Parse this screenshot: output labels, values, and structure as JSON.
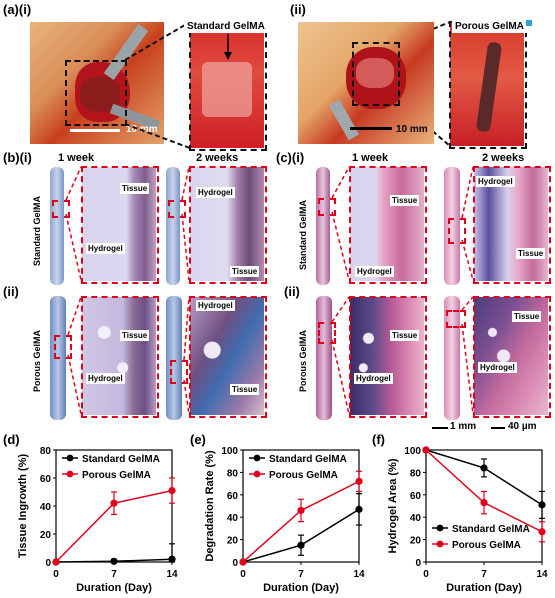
{
  "panel_a": {
    "label": "(a)(i)",
    "label_ii": "(ii)",
    "left_callout": "Standard GelMA",
    "right_callout": "Porous GelMA",
    "scale_left": "10 mm",
    "scale_right": "10 mm"
  },
  "panel_b": {
    "label": "(b)(i)",
    "label_ii": "(ii)",
    "week1": "1 week",
    "week2": "2 weeks",
    "row_i": "Standard GelMA",
    "row_ii": "Porous GelMA",
    "tissue": "Tissue",
    "hydrogel": "Hydrogel"
  },
  "panel_c": {
    "label": "(c)(i)",
    "label_ii": "(ii)",
    "week1": "1 week",
    "week2": "2 weeks",
    "row_i": "Standard GelMA",
    "row_ii": "Porous GelMA",
    "tissue": "Tissue",
    "hydrogel": "Hydrogel",
    "scale_1": "1 mm",
    "scale_2": "40 µm"
  },
  "colors": {
    "standard": "#000000",
    "porous": "#e0001b",
    "surgery_red": "#c4121d",
    "trichrome_blue": "#6f8fc4",
    "he_pink": "#e9a7c7",
    "hydrogel_lilac": "#d8d4ee"
  },
  "chart_data": [
    {
      "panel": "(d)",
      "type": "line",
      "ylabel": "Tissue Ingrowth (%)",
      "xlabel": "Duration (Day)",
      "x": [
        0,
        7,
        14
      ],
      "xticks": [
        "0",
        "7",
        "14"
      ],
      "ylim": [
        0,
        80
      ],
      "yticks": [
        "0",
        "20",
        "40",
        "60",
        "80"
      ],
      "legend_position": "top-left",
      "series": [
        {
          "name": "Standard GelMA",
          "values": [
            0,
            0.5,
            2
          ],
          "errors": [
            0,
            1.5,
            11
          ]
        },
        {
          "name": "Porous GelMA",
          "values": [
            0,
            42,
            51
          ],
          "errors": [
            0,
            8,
            9
          ]
        }
      ]
    },
    {
      "panel": "(e)",
      "type": "line",
      "ylabel": "Degradation Rate (%)",
      "xlabel": "Duration (Day)",
      "x": [
        0,
        7,
        14
      ],
      "xticks": [
        "0",
        "7",
        "14"
      ],
      "ylim": [
        0,
        100
      ],
      "yticks": [
        "0",
        "20",
        "40",
        "60",
        "80",
        "100"
      ],
      "legend_position": "top-left",
      "series": [
        {
          "name": "Standard GelMA",
          "values": [
            0,
            15,
            47
          ],
          "errors": [
            0,
            9,
            14
          ]
        },
        {
          "name": "Porous GelMA",
          "values": [
            0,
            46,
            72
          ],
          "errors": [
            0,
            10,
            9
          ]
        }
      ]
    },
    {
      "panel": "(f)",
      "type": "line",
      "ylabel": "Hydrogel Area (%)",
      "xlabel": "Duration (Day)",
      "x": [
        0,
        7,
        14
      ],
      "xticks": [
        "0",
        "7",
        "14"
      ],
      "ylim": [
        0,
        100
      ],
      "yticks": [
        "0",
        "20",
        "40",
        "60",
        "80",
        "100"
      ],
      "legend_position": "bottom-left",
      "series": [
        {
          "name": "Standard GelMA",
          "values": [
            100,
            84,
            51
          ],
          "errors": [
            0,
            8,
            12
          ]
        },
        {
          "name": "Porous GelMA",
          "values": [
            100,
            53,
            27
          ],
          "errors": [
            0,
            10,
            9
          ]
        }
      ]
    }
  ]
}
